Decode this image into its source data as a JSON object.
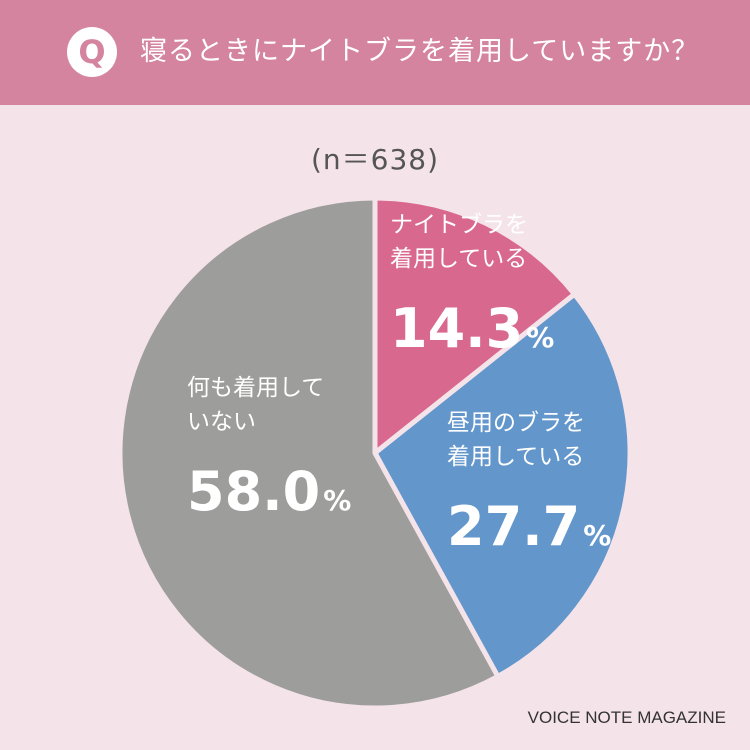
{
  "header": {
    "badge": "Q",
    "question": "寝るときにナイトブラを着用していますか？"
  },
  "sample": "(n＝638)",
  "footer": "VOICE NOTE MAGAZINE",
  "chart_data": {
    "type": "pie",
    "start": "12 o'clock",
    "direction": "clockwise",
    "slices": [
      {
        "label": [
          "ナイトブラを",
          "着用している"
        ],
        "value": 14.3,
        "display": "14.3",
        "unit": "%",
        "color": "#d9688f"
      },
      {
        "label": [
          "昼用のブラを",
          "着用している"
        ],
        "value": 27.7,
        "display": "27.7",
        "unit": "%",
        "color": "#6396cb"
      },
      {
        "label": [
          "何も着用して",
          "いない"
        ],
        "value": 58.0,
        "display": "58.0",
        "unit": "%",
        "color": "#9d9d9c"
      }
    ],
    "separator_color": "#f5e3ea"
  }
}
